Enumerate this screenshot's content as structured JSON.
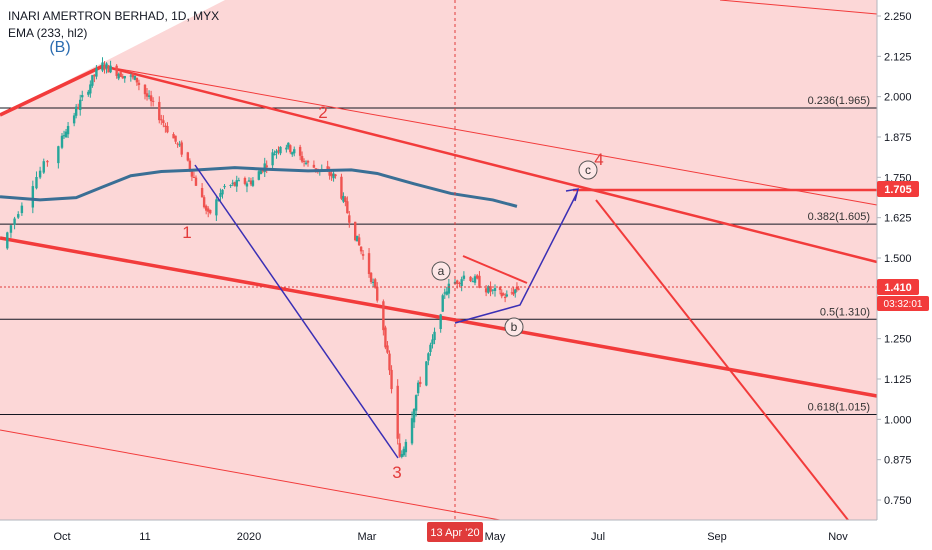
{
  "window": {
    "symbol_title": "INARI AMERTRON BERHAD, 1D, MYX",
    "indicator": "EMA (233, hl2)"
  },
  "colors": {
    "background_fill": "#fcd7d7",
    "fib_line": "#131722",
    "trend_red": "#f23b3b",
    "wave_blue": "#3a2fb5",
    "ema": "#3a6f95",
    "up_candle": "#26a69a",
    "down_candle": "#ef5350",
    "label_red": "#e33b3b",
    "price_tag": "#f23b3b"
  },
  "chart_data": {
    "type": "candlestick",
    "title": "INARI AMERTRON BERHAD, 1D, MYX",
    "y_axis": {
      "ticks": [
        "2.250",
        "2.125",
        "2.000",
        "1.875",
        "1.750",
        "1.625",
        "1.500",
        "1.250",
        "1.125",
        "1.000",
        "0.875",
        "0.750"
      ],
      "range": [
        0.7,
        2.29
      ]
    },
    "x_axis": {
      "ticks": [
        "Oct",
        "11",
        "2020",
        "Mar",
        "May",
        "Jul",
        "Sep",
        "Nov"
      ],
      "highlight": "13 Apr '20"
    },
    "fib_levels": [
      {
        "label": "0.236(1.965)",
        "value": 1.965
      },
      {
        "label": "0.382(1.605)",
        "value": 1.605
      },
      {
        "label": "0.5(1.310)",
        "value": 1.31
      },
      {
        "label": "0.618(1.015)",
        "value": 1.015
      }
    ],
    "price_tags": {
      "target": "1.705",
      "last": "1.410",
      "countdown": "03:32:01"
    },
    "wave_labels": {
      "B": "(B)",
      "w1": "1",
      "w2": "2",
      "w3": "3",
      "w4": "4",
      "a": "a",
      "b": "b",
      "c": "c"
    },
    "ema_233": [
      {
        "x": "2019-09-14",
        "y": 1.79
      },
      {
        "x": "2019-09-25",
        "y": 1.78
      },
      {
        "x": "2019-10-08",
        "y": 1.787
      },
      {
        "x": "2019-10-21",
        "y": 1.82
      },
      {
        "x": "2019-11-04",
        "y": 1.855
      },
      {
        "x": "2019-11-19",
        "y": 1.868
      },
      {
        "x": "2019-12-04",
        "y": 1.872
      },
      {
        "x": "2019-12-25",
        "y": 1.88
      },
      {
        "x": "2020-01-10",
        "y": 1.875
      },
      {
        "x": "2020-01-31",
        "y": 1.87
      },
      {
        "x": "2020-02-22",
        "y": 1.873
      },
      {
        "x": "2020-03-06",
        "y": 1.862
      },
      {
        "x": "2020-03-24",
        "y": 1.83
      },
      {
        "x": "2020-04-11",
        "y": 1.8
      },
      {
        "x": "2020-04-30",
        "y": 1.78
      },
      {
        "x": "2020-05-14",
        "y": 1.76
      }
    ],
    "waypoints": [
      {
        "x": "2019-09-14",
        "y": 1.53
      },
      {
        "x": "2019-09-22",
        "y": 1.72
      },
      {
        "x": "2019-10-03",
        "y": 1.9
      },
      {
        "x": "2019-10-20",
        "y": 2.1
      },
      {
        "x": "2019-11-07",
        "y": 2.05
      },
      {
        "x": "2019-11-19",
        "y": 1.93
      },
      {
        "x": "2019-12-02",
        "y": 1.8
      },
      {
        "x": "2019-12-12",
        "y": 1.63
      },
      {
        "x": "2019-12-20",
        "y": 1.72
      },
      {
        "x": "2020-01-03",
        "y": 1.74
      },
      {
        "x": "2020-01-18",
        "y": 1.86
      },
      {
        "x": "2020-01-31",
        "y": 1.79
      },
      {
        "x": "2020-02-14",
        "y": 1.75
      },
      {
        "x": "2020-02-24",
        "y": 1.57
      },
      {
        "x": "2020-03-03",
        "y": 1.44
      },
      {
        "x": "2020-03-08",
        "y": 1.33
      },
      {
        "x": "2020-03-13",
        "y": 1.1
      },
      {
        "x": "2020-03-17",
        "y": 0.87
      },
      {
        "x": "2020-03-26",
        "y": 1.1
      },
      {
        "x": "2020-04-04",
        "y": 1.28
      },
      {
        "x": "2020-04-08",
        "y": 1.4
      },
      {
        "x": "2020-04-18",
        "y": 1.45
      },
      {
        "x": "2020-04-28",
        "y": 1.4
      },
      {
        "x": "2020-05-08",
        "y": 1.38
      },
      {
        "x": "2020-05-15",
        "y": 1.41
      }
    ]
  }
}
